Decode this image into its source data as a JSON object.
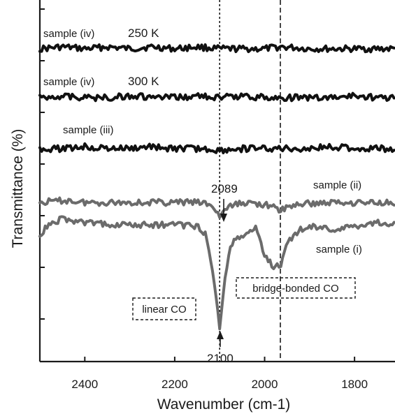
{
  "chart_data": {
    "type": "line",
    "xlabel": "Wavenumber (cm-1)",
    "ylabel": "Transmittance (%)",
    "xlim": [
      2500,
      1710
    ],
    "x_reversed": true,
    "xticks": [
      2400,
      2200,
      2000,
      1800
    ],
    "yticks_count": 7,
    "grid": false,
    "colors": {
      "dark": "#111111",
      "gray": "#6b6b6b",
      "axis": "#1a1a1a"
    },
    "reference_lines": [
      2100,
      1965
    ],
    "series": [
      {
        "name": "sample (iv) 250 K",
        "color": "dark",
        "points": [
          [
            2500,
            0
          ],
          [
            2450,
            0.1
          ],
          [
            2400,
            0
          ],
          [
            2350,
            0.1
          ],
          [
            2300,
            0
          ],
          [
            2250,
            0.1
          ],
          [
            2200,
            0
          ],
          [
            2150,
            0.1
          ],
          [
            2100,
            0
          ],
          [
            2050,
            0
          ],
          [
            2000,
            0
          ],
          [
            1965,
            0.1
          ],
          [
            1900,
            0
          ],
          [
            1850,
            0
          ],
          [
            1800,
            0
          ],
          [
            1750,
            0
          ],
          [
            1710,
            0
          ]
        ]
      },
      {
        "name": "sample (iv) 300 K",
        "color": "dark",
        "points": [
          [
            2500,
            0
          ],
          [
            2450,
            0.1
          ],
          [
            2400,
            0
          ],
          [
            2350,
            0
          ],
          [
            2300,
            0.1
          ],
          [
            2250,
            0
          ],
          [
            2200,
            0
          ],
          [
            2150,
            0.1
          ],
          [
            2100,
            0
          ],
          [
            2050,
            0.1
          ],
          [
            2000,
            0
          ],
          [
            1965,
            0
          ],
          [
            1900,
            0
          ],
          [
            1850,
            0
          ],
          [
            1800,
            0.1
          ],
          [
            1750,
            0
          ],
          [
            1710,
            0
          ]
        ]
      },
      {
        "name": "sample (iii)",
        "color": "dark",
        "points": [
          [
            2500,
            0
          ],
          [
            2450,
            0
          ],
          [
            2400,
            0.1
          ],
          [
            2350,
            0
          ],
          [
            2300,
            0
          ],
          [
            2250,
            0.1
          ],
          [
            2200,
            0
          ],
          [
            2150,
            0
          ],
          [
            2100,
            -0.1
          ],
          [
            2050,
            0
          ],
          [
            2000,
            0
          ],
          [
            1965,
            0
          ],
          [
            1900,
            0
          ],
          [
            1850,
            0.1
          ],
          [
            1800,
            0
          ],
          [
            1750,
            0
          ],
          [
            1710,
            0
          ]
        ]
      },
      {
        "name": "sample (ii)",
        "color": "gray",
        "points": [
          [
            2500,
            0
          ],
          [
            2440,
            0.1
          ],
          [
            2400,
            0
          ],
          [
            2300,
            0
          ],
          [
            2200,
            0
          ],
          [
            2150,
            0
          ],
          [
            2120,
            -0.1
          ],
          [
            2100,
            -0.7
          ],
          [
            2085,
            -0.3
          ],
          [
            2050,
            0
          ],
          [
            2000,
            -0.1
          ],
          [
            1965,
            -0.4
          ],
          [
            1930,
            -0.1
          ],
          [
            1850,
            0
          ],
          [
            1750,
            0
          ],
          [
            1710,
            0
          ]
        ]
      },
      {
        "name": "sample (i)",
        "color": "gray",
        "points": [
          [
            2500,
            -0.5
          ],
          [
            2480,
            0
          ],
          [
            2450,
            0.3
          ],
          [
            2400,
            0.1
          ],
          [
            2300,
            0
          ],
          [
            2200,
            0
          ],
          [
            2150,
            -0.1
          ],
          [
            2130,
            -0.5
          ],
          [
            2115,
            -2.5
          ],
          [
            2100,
            -5.2
          ],
          [
            2090,
            -3
          ],
          [
            2075,
            -1
          ],
          [
            2050,
            -0.5
          ],
          [
            2020,
            -0.2
          ],
          [
            2000,
            -1.5
          ],
          [
            1980,
            -2.2
          ],
          [
            1965,
            -2.1
          ],
          [
            1950,
            -1
          ],
          [
            1920,
            -0.2
          ],
          [
            1880,
            -0.1
          ],
          [
            1850,
            -0.3
          ],
          [
            1800,
            -0.1
          ],
          [
            1750,
            0.1
          ],
          [
            1710,
            0
          ]
        ]
      }
    ],
    "annotations": {
      "iv250_label": "sample (iv)",
      "iv250_temp": "250 K",
      "iv300_label": "sample (iv)",
      "iv300_temp": "300 K",
      "iii_label": "sample (iii)",
      "ii_label": "sample (ii)",
      "i_label": "sample (i)",
      "peak_2089": "2089",
      "peak_2100": "2100",
      "linear_co": "linear CO",
      "bridge_co": "bridge-bonded CO"
    }
  }
}
